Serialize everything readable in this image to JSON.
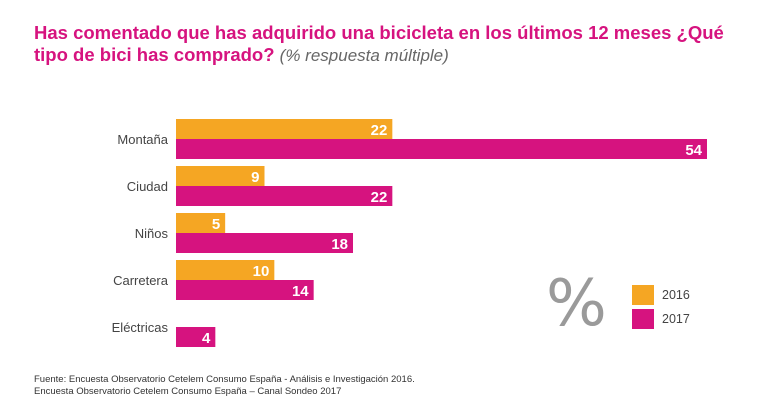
{
  "title": {
    "main": "Has comentado que has adquirido una bicicleta en los últimos 12 meses ¿Qué tipo de bici has comprado?",
    "sub": "(% respuesta múltiple)"
  },
  "legend": {
    "symbol": "%",
    "items": [
      {
        "label": "2016",
        "color": "#f5a623"
      },
      {
        "label": "2017",
        "color": "#d6137f"
      }
    ]
  },
  "source": {
    "line1": "Fuente: Encuesta Observatorio Cetelem Consumo España - Análisis e Investigación 2016.",
    "line2": "Encuesta Observatorio Cetelem Consumo España – Canal Sondeo 2017"
  },
  "chart_data": {
    "type": "bar",
    "orientation": "horizontal",
    "categories": [
      "Montaña",
      "Ciudad",
      "Niños",
      "Carretera",
      "Eléctricas"
    ],
    "series": [
      {
        "name": "2016",
        "color": "#f5a623",
        "values": [
          22,
          9,
          5,
          10,
          null
        ]
      },
      {
        "name": "2017",
        "color": "#d6137f",
        "values": [
          54,
          22,
          18,
          14,
          4
        ]
      }
    ],
    "xlim": [
      0,
      54
    ],
    "grid": false,
    "legend_position": "bottom-right"
  }
}
